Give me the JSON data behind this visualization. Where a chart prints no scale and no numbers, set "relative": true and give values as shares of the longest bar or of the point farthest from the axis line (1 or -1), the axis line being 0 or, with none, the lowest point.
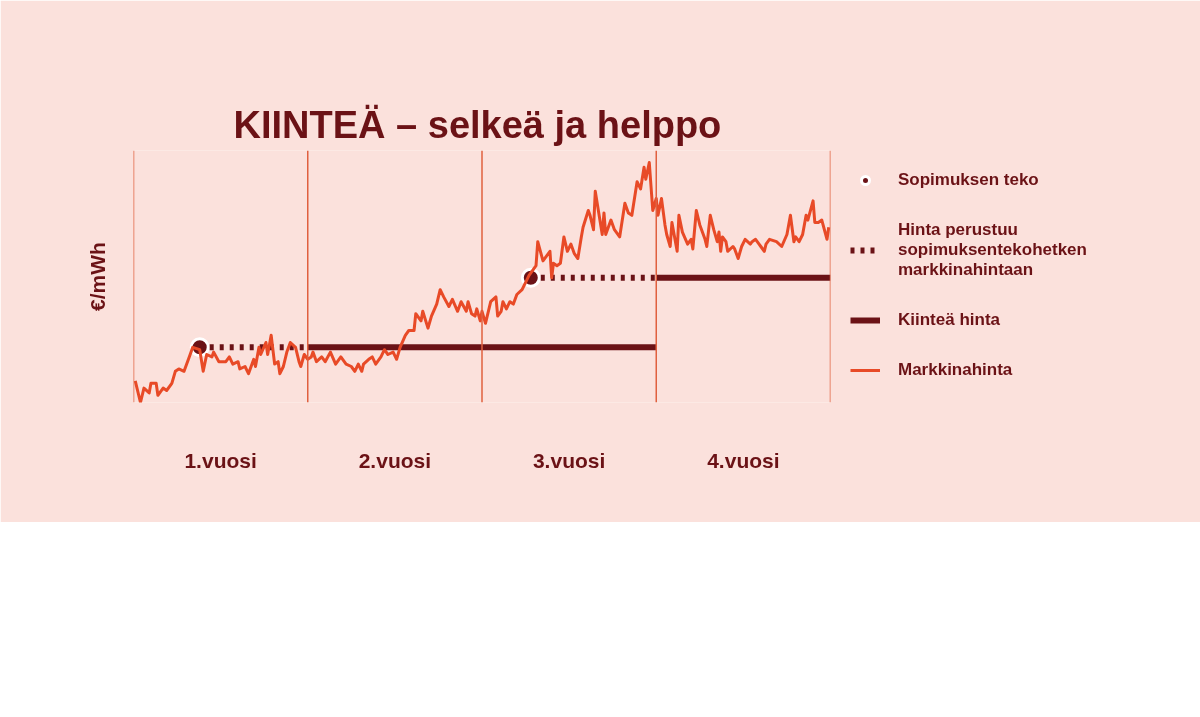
{
  "chart_data": {
    "type": "line",
    "title": "KIINTEÄ – selkeä ja helppo",
    "ylabel": "€/mWh",
    "relative": true,
    "legend": "right",
    "grid": false,
    "tick_labels": "x",
    "xlim": [
      0,
      4
    ],
    "xticks": [
      {
        "value": 0.5,
        "label": "1.vuosi"
      },
      {
        "value": 1.5,
        "label": "2.vuosi"
      },
      {
        "value": 2.5,
        "label": "3.vuosi"
      },
      {
        "value": 3.5,
        "label": "4.vuosi"
      }
    ],
    "ref_lines": [
      {
        "axis": "x",
        "value": 0,
        "color": "#e0603f"
      },
      {
        "axis": "x",
        "value": 1,
        "color": "#e0603f"
      },
      {
        "axis": "x",
        "value": 2,
        "color": "#e0603f"
      },
      {
        "axis": "x",
        "value": 3,
        "color": "#e0603f"
      },
      {
        "axis": "x",
        "value": 4,
        "color": "#e0603f"
      }
    ],
    "series": [
      {
        "name": "Sopimuksen teko",
        "type": "scatter",
        "marker": "circle",
        "color": "#6b1216",
        "x": [
          0.38,
          2.28
        ],
        "values": [
          0.23,
          0.52
        ]
      },
      {
        "name": "Hinta perustuu sopimuksentekohetken markkinahintaan",
        "type": "line",
        "line_style": "dotted",
        "color": "#6b1216",
        "x": [
          0.38,
          1.0,
          null,
          2.28,
          3.0
        ],
        "values": [
          0.23,
          0.23,
          null,
          0.52,
          0.52
        ]
      },
      {
        "name": "Kiinteä hinta",
        "type": "line",
        "line_style": "solid",
        "color": "#6b1216",
        "x": [
          1.0,
          3.0,
          null,
          3.0,
          4.0
        ],
        "values": [
          0.23,
          0.23,
          null,
          0.52,
          0.52
        ]
      },
      {
        "name": "Markkinahinta",
        "line_style": "solid",
        "color": "#e84a27",
        "x": [
          0.01,
          0.04,
          0.06,
          0.09,
          0.1,
          0.13,
          0.14,
          0.17,
          0.19,
          0.22,
          0.24,
          0.26,
          0.29,
          0.32,
          0.34,
          0.38,
          0.4,
          0.42,
          0.45,
          0.46,
          0.49,
          0.53,
          0.55,
          0.57,
          0.6,
          0.61,
          0.64,
          0.66,
          0.69,
          0.7,
          0.72,
          0.73,
          0.76,
          0.77,
          0.79,
          0.81,
          0.83,
          0.84,
          0.86,
          0.88,
          0.9,
          0.93,
          0.95,
          0.96,
          0.98,
          1.0,
          1.02,
          1.03,
          1.05,
          1.08,
          1.1,
          1.13,
          1.16,
          1.19,
          1.22,
          1.25,
          1.27,
          1.29,
          1.31,
          1.32,
          1.35,
          1.37,
          1.39,
          1.42,
          1.44,
          1.46,
          1.49,
          1.51,
          1.53,
          1.56,
          1.58,
          1.61,
          1.62,
          1.65,
          1.66,
          1.69,
          1.71,
          1.74,
          1.76,
          1.78,
          1.81,
          1.83,
          1.86,
          1.88,
          1.91,
          1.92,
          1.94,
          1.96,
          1.97,
          1.99,
          2.0,
          2.02,
          2.05,
          2.08,
          2.09,
          2.11,
          2.12,
          2.14,
          2.16,
          2.18,
          2.2,
          2.23,
          2.27,
          2.3,
          2.31,
          2.32,
          2.35,
          2.37,
          2.39,
          2.4,
          2.41,
          2.43,
          2.45,
          2.47,
          2.49,
          2.51,
          2.53,
          2.55,
          2.57,
          2.58,
          2.61,
          2.62,
          2.64,
          2.65,
          2.69,
          2.7,
          2.71,
          2.74,
          2.76,
          2.79,
          2.82,
          2.84,
          2.86,
          2.89,
          2.91,
          2.93,
          2.94,
          2.96,
          2.98,
          3.0,
          3.01,
          3.03,
          3.05,
          3.06,
          3.08,
          3.09,
          3.11,
          3.12,
          3.13,
          3.15,
          3.18,
          3.2,
          3.21,
          3.23,
          3.25,
          3.28,
          3.29,
          3.31,
          3.33,
          3.35,
          3.36,
          3.37,
          3.38,
          3.4,
          3.41,
          3.44,
          3.45,
          3.47,
          3.49,
          3.51,
          3.54,
          3.55,
          3.57,
          3.59,
          3.6,
          3.62,
          3.63,
          3.65,
          3.69,
          3.72,
          3.75,
          3.77,
          3.79,
          3.8,
          3.82,
          3.84,
          3.86,
          3.87,
          3.9,
          3.91,
          3.93,
          3.95,
          3.98,
          3.99
        ],
        "values": [
          0.09,
          0.0,
          0.06,
          0.04,
          0.08,
          0.08,
          0.03,
          0.06,
          0.05,
          0.08,
          0.13,
          0.14,
          0.13,
          0.19,
          0.23,
          0.22,
          0.13,
          0.2,
          0.19,
          0.21,
          0.17,
          0.17,
          0.19,
          0.16,
          0.17,
          0.14,
          0.15,
          0.12,
          0.18,
          0.15,
          0.23,
          0.2,
          0.25,
          0.2,
          0.28,
          0.16,
          0.17,
          0.12,
          0.15,
          0.21,
          0.25,
          0.23,
          0.17,
          0.15,
          0.2,
          0.18,
          0.19,
          0.21,
          0.17,
          0.19,
          0.17,
          0.21,
          0.16,
          0.19,
          0.16,
          0.15,
          0.13,
          0.16,
          0.13,
          0.16,
          0.18,
          0.19,
          0.16,
          0.19,
          0.22,
          0.2,
          0.21,
          0.18,
          0.23,
          0.28,
          0.3,
          0.3,
          0.37,
          0.34,
          0.38,
          0.31,
          0.36,
          0.41,
          0.47,
          0.44,
          0.4,
          0.43,
          0.38,
          0.42,
          0.38,
          0.42,
          0.37,
          0.36,
          0.39,
          0.34,
          0.38,
          0.33,
          0.42,
          0.44,
          0.36,
          0.38,
          0.42,
          0.39,
          0.42,
          0.41,
          0.45,
          0.47,
          0.53,
          0.56,
          0.57,
          0.67,
          0.59,
          0.61,
          0.63,
          0.52,
          0.58,
          0.57,
          0.58,
          0.69,
          0.63,
          0.66,
          0.62,
          0.6,
          0.69,
          0.73,
          0.8,
          0.78,
          0.72,
          0.88,
          0.7,
          0.79,
          0.7,
          0.76,
          0.72,
          0.69,
          0.83,
          0.79,
          0.78,
          0.92,
          0.89,
          0.98,
          0.93,
          1.0,
          0.8,
          0.85,
          0.78,
          0.85,
          0.74,
          0.7,
          0.65,
          0.75,
          0.67,
          0.63,
          0.78,
          0.71,
          0.66,
          0.68,
          0.64,
          0.8,
          0.74,
          0.68,
          0.65,
          0.78,
          0.72,
          0.67,
          0.71,
          0.63,
          0.69,
          0.67,
          0.63,
          0.65,
          0.64,
          0.6,
          0.65,
          0.68,
          0.66,
          0.67,
          0.68,
          0.66,
          0.65,
          0.63,
          0.66,
          0.68,
          0.67,
          0.65,
          0.7,
          0.78,
          0.67,
          0.69,
          0.67,
          0.7,
          0.78,
          0.76,
          0.84,
          0.75,
          0.75,
          0.76,
          0.68,
          0.73
        ]
      }
    ]
  }
}
